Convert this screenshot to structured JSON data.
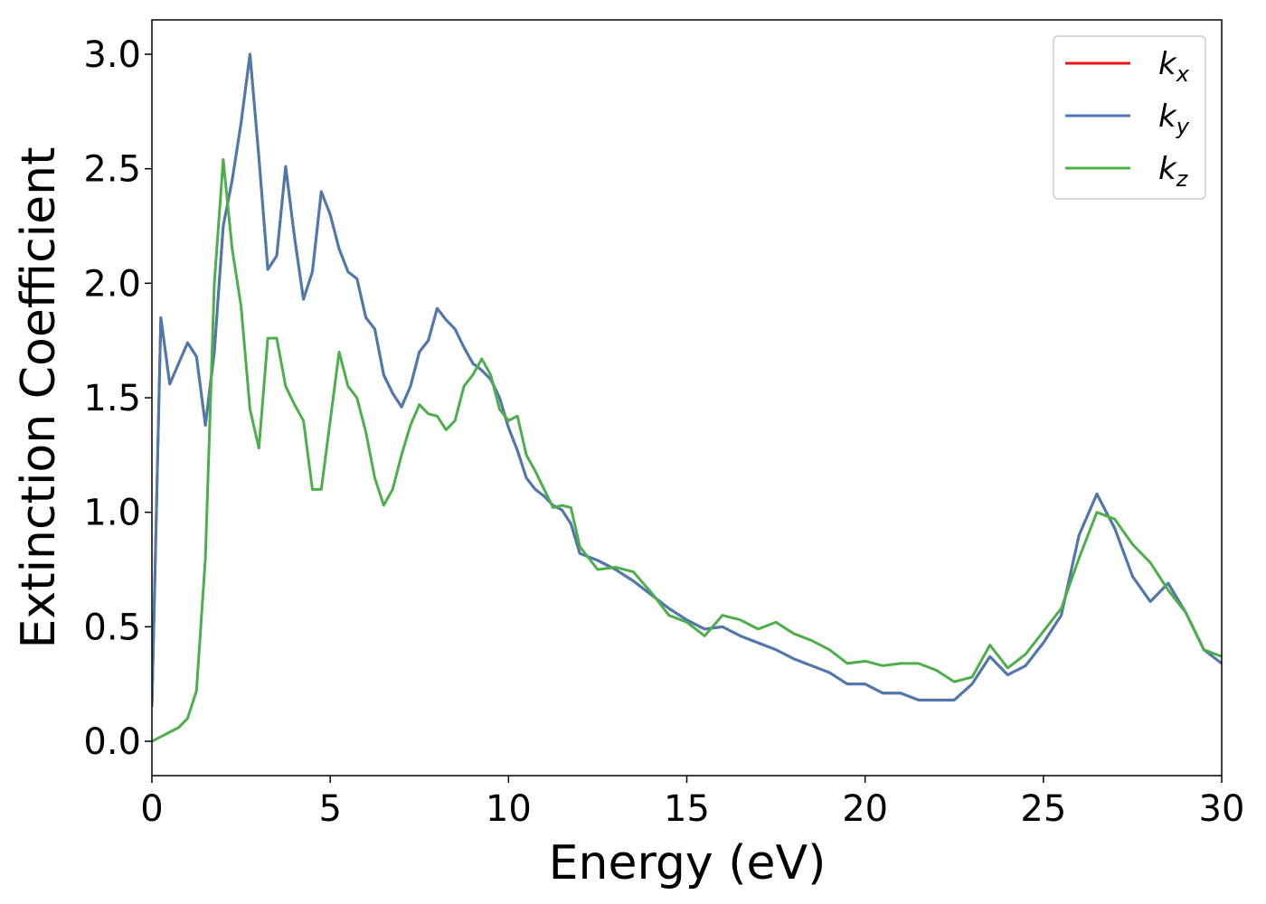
{
  "chart_data": {
    "type": "line",
    "x_label": "Energy (eV)",
    "y_label": "Extinction Coefficient",
    "x": [
      0,
      0.25,
      0.5,
      0.75,
      1,
      1.25,
      1.5,
      1.75,
      2,
      2.25,
      2.5,
      2.75,
      3,
      3.25,
      3.5,
      3.75,
      4,
      4.25,
      4.5,
      4.75,
      5,
      5.25,
      5.5,
      5.75,
      6,
      6.25,
      6.5,
      6.75,
      7,
      7.25,
      7.5,
      7.75,
      8,
      8.25,
      8.5,
      8.75,
      9,
      9.25,
      9.5,
      9.75,
      10,
      10.25,
      10.5,
      10.75,
      11,
      11.25,
      11.5,
      11.75,
      12,
      12.5,
      13,
      13.5,
      14,
      14.5,
      15,
      15.5,
      16,
      16.5,
      17,
      17.5,
      18,
      18.5,
      19,
      19.5,
      20,
      20.5,
      21,
      21.5,
      22,
      22.5,
      23,
      23.5,
      24,
      24.5,
      25,
      25.5,
      26,
      26.5,
      27,
      27.5,
      28,
      28.5,
      29,
      29.5,
      30
    ],
    "series": [
      {
        "name": "kx",
        "color": "#e41a1c",
        "values": [
          0.15,
          1.85,
          1.56,
          1.65,
          1.74,
          1.68,
          1.38,
          1.7,
          2.25,
          2.45,
          2.7,
          3.0,
          2.55,
          2.06,
          2.12,
          2.51,
          2.2,
          1.93,
          2.05,
          2.4,
          2.3,
          2.15,
          2.05,
          2.02,
          1.85,
          1.8,
          1.6,
          1.52,
          1.46,
          1.55,
          1.7,
          1.75,
          1.89,
          1.84,
          1.8,
          1.72,
          1.65,
          1.62,
          1.58,
          1.5,
          1.37,
          1.27,
          1.15,
          1.1,
          1.07,
          1.03,
          1.01,
          0.95,
          0.82,
          0.79,
          0.75,
          0.7,
          0.64,
          0.58,
          0.53,
          0.49,
          0.5,
          0.46,
          0.43,
          0.4,
          0.36,
          0.33,
          0.3,
          0.25,
          0.25,
          0.21,
          0.21,
          0.18,
          0.18,
          0.18,
          0.25,
          0.37,
          0.29,
          0.33,
          0.43,
          0.55,
          0.9,
          1.08,
          0.93,
          0.72,
          0.61,
          0.69,
          0.56,
          0.4,
          0.34
        ]
      },
      {
        "name": "ky",
        "color": "#4a7ab0",
        "values": [
          0.15,
          1.85,
          1.56,
          1.65,
          1.74,
          1.68,
          1.38,
          1.7,
          2.25,
          2.45,
          2.7,
          3.0,
          2.55,
          2.06,
          2.12,
          2.51,
          2.2,
          1.93,
          2.05,
          2.4,
          2.3,
          2.15,
          2.05,
          2.02,
          1.85,
          1.8,
          1.6,
          1.52,
          1.46,
          1.55,
          1.7,
          1.75,
          1.89,
          1.84,
          1.8,
          1.72,
          1.65,
          1.62,
          1.58,
          1.5,
          1.37,
          1.27,
          1.15,
          1.1,
          1.07,
          1.03,
          1.01,
          0.95,
          0.82,
          0.79,
          0.75,
          0.7,
          0.64,
          0.58,
          0.53,
          0.49,
          0.5,
          0.46,
          0.43,
          0.4,
          0.36,
          0.33,
          0.3,
          0.25,
          0.25,
          0.21,
          0.21,
          0.18,
          0.18,
          0.18,
          0.25,
          0.37,
          0.29,
          0.33,
          0.43,
          0.55,
          0.9,
          1.08,
          0.93,
          0.72,
          0.61,
          0.69,
          0.56,
          0.4,
          0.34
        ]
      },
      {
        "name": "kz",
        "color": "#4daf4a",
        "values": [
          0.0,
          0.02,
          0.04,
          0.06,
          0.1,
          0.22,
          0.8,
          2.0,
          2.54,
          2.15,
          1.9,
          1.45,
          1.28,
          1.76,
          1.76,
          1.55,
          1.47,
          1.4,
          1.1,
          1.1,
          1.4,
          1.7,
          1.55,
          1.5,
          1.35,
          1.15,
          1.03,
          1.1,
          1.25,
          1.38,
          1.47,
          1.43,
          1.42,
          1.36,
          1.4,
          1.55,
          1.6,
          1.67,
          1.6,
          1.45,
          1.4,
          1.42,
          1.25,
          1.18,
          1.1,
          1.02,
          1.03,
          1.02,
          0.85,
          0.75,
          0.76,
          0.74,
          0.65,
          0.55,
          0.52,
          0.46,
          0.55,
          0.53,
          0.49,
          0.52,
          0.47,
          0.44,
          0.4,
          0.34,
          0.35,
          0.33,
          0.34,
          0.34,
          0.31,
          0.26,
          0.28,
          0.42,
          0.32,
          0.38,
          0.48,
          0.58,
          0.8,
          1.0,
          0.97,
          0.86,
          0.78,
          0.66,
          0.56,
          0.4,
          0.37
        ]
      }
    ],
    "xlim": [
      0,
      30
    ],
    "xticks": [
      0,
      5,
      10,
      15,
      20,
      25,
      30
    ],
    "ylim": [
      -0.15,
      3.15
    ],
    "yticks": [
      {
        "value": 0,
        "label": "0.0"
      },
      0.5,
      {
        "value": 1,
        "label": "1.0"
      },
      1.5,
      {
        "value": 2,
        "label": "2.0"
      },
      2.5,
      {
        "value": 3,
        "label": "3.0"
      }
    ],
    "legend": "upper right",
    "grid": false
  }
}
